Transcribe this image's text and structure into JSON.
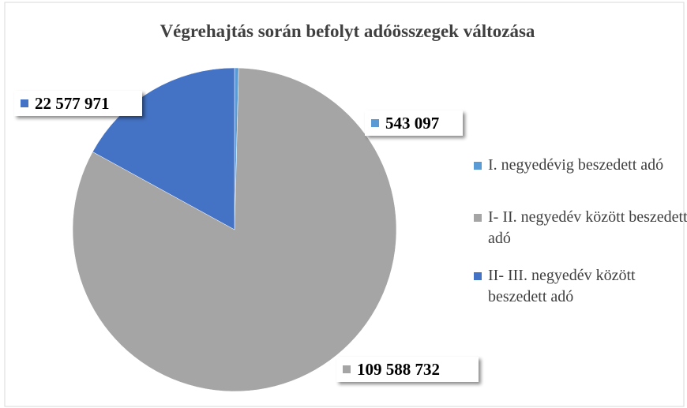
{
  "chart_data": {
    "type": "pie",
    "title": "Végrehajtás során befolyt adóösszegek változása",
    "categories": [
      "I. negyedévig beszedett adó",
      "I- II. negyedév között beszedett adó",
      "II- III. negyedév között beszedett adó"
    ],
    "values": [
      543097,
      109588732,
      22577971
    ],
    "value_labels": [
      "543 097",
      "109 588 732",
      "22 577 971"
    ],
    "colors": [
      "#5b9bd5",
      "#a5a5a5",
      "#4472c4"
    ],
    "legend": "right"
  }
}
